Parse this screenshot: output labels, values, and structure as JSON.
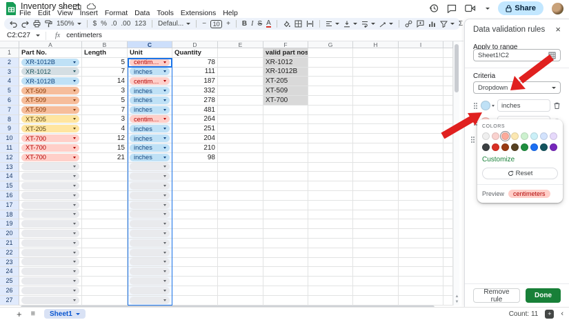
{
  "titlebar": {
    "title": "Inventory sheet",
    "menus": [
      "File",
      "Edit",
      "View",
      "Insert",
      "Format",
      "Data",
      "Tools",
      "Extensions",
      "Help"
    ],
    "share_label": "Share"
  },
  "toolbar": {
    "zoom": "150%",
    "currency": "$",
    "percent": "%",
    "dec_dec": ".0",
    "dec_inc": ".00",
    "fmt123": "123",
    "font": "Defaul...",
    "font_size": "10",
    "bold": "B",
    "italic": "I",
    "strike": "S",
    "text_color": "A",
    "sum": "Σ"
  },
  "formula_bar": {
    "name_box": "C2:C27",
    "fx": "fx",
    "value": "centimeters"
  },
  "grid": {
    "col_headers": [
      "A",
      "B",
      "C",
      "D",
      "E",
      "F",
      "G",
      "H",
      "I"
    ],
    "selected_col": "C",
    "header_row": {
      "A": "Part No.",
      "B": "Length",
      "C": "Unit",
      "D": "Quantity",
      "F": "valid part nos."
    },
    "rows": [
      {
        "part": "XR-1012B",
        "part_c": "blue",
        "len": "5",
        "unit": "centimeters",
        "unit_c": "red",
        "qty": "78",
        "valid": "XR-1012"
      },
      {
        "part": "XR-1012",
        "part_c": "teal",
        "len": "7",
        "unit": "inches",
        "unit_c": "blue",
        "qty": "111",
        "valid": "XR-1012B"
      },
      {
        "part": "XR-1012B",
        "part_c": "blue",
        "len": "14",
        "unit": "centimeters",
        "unit_c": "red",
        "qty": "187",
        "valid": "XT-205"
      },
      {
        "part": "XT-509",
        "part_c": "orange",
        "len": "3",
        "unit": "inches",
        "unit_c": "blue",
        "qty": "332",
        "valid": "XT-509"
      },
      {
        "part": "XT-509",
        "part_c": "orange",
        "len": "5",
        "unit": "inches",
        "unit_c": "blue",
        "qty": "278",
        "valid": "XT-700"
      },
      {
        "part": "XT-509",
        "part_c": "orange",
        "len": "7",
        "unit": "inches",
        "unit_c": "blue",
        "qty": "481",
        "valid": ""
      },
      {
        "part": "XT-205",
        "part_c": "yellow",
        "len": "3",
        "unit": "centimeters",
        "unit_c": "red",
        "qty": "264",
        "valid": ""
      },
      {
        "part": "XT-205",
        "part_c": "yellow",
        "len": "4",
        "unit": "inches",
        "unit_c": "blue",
        "qty": "251",
        "valid": ""
      },
      {
        "part": "XT-700",
        "part_c": "red",
        "len": "12",
        "unit": "inches",
        "unit_c": "blue",
        "qty": "204",
        "valid": ""
      },
      {
        "part": "XT-700",
        "part_c": "red",
        "len": "15",
        "unit": "inches",
        "unit_c": "blue",
        "qty": "210",
        "valid": ""
      },
      {
        "part": "XT-700",
        "part_c": "red",
        "len": "21",
        "unit": "inches",
        "unit_c": "blue",
        "qty": "98",
        "valid": ""
      }
    ],
    "total_rows": 27,
    "chip_colors": {
      "blue": {
        "bg": "#bfe1f6",
        "fg": "#11457e"
      },
      "teal": {
        "bg": "#d4dee3",
        "fg": "#21575e"
      },
      "orange": {
        "bg": "#f6bd9b",
        "fg": "#8a3c09"
      },
      "yellow": {
        "bg": "#ffe5a0",
        "fg": "#5c4612"
      },
      "red": {
        "bg": "#ffcfc9",
        "fg": "#b10202"
      },
      "empty": {
        "bg": "#e9eaed",
        "fg": "#5f6368"
      }
    },
    "valid_col_bg": "#d9d9d9"
  },
  "panel": {
    "title": "Data validation rules",
    "close": "×",
    "apply_to_range_label": "Apply to range",
    "range_value": "Sheet1!C2",
    "criteria_label": "Criteria",
    "criteria_value": "Dropdown",
    "options": [
      {
        "value": "inches",
        "swatch": "#bfe1f6"
      },
      {
        "value": "centimeters",
        "swatch": "#ffcfc9"
      }
    ],
    "color_picker": {
      "colors_label": "COLORS",
      "row1": [
        "#efefef",
        "#fad2cf",
        "#fcab9b",
        "#fce8b2",
        "#cdf1cf",
        "#cbf0f8",
        "#d3e3fd",
        "#e6d9fb"
      ],
      "row2": [
        "#3c4043",
        "#d93025",
        "#9a3b13",
        "#574122",
        "#1e8e3e",
        "#1b6ef3",
        "#14545e",
        "#7627bb"
      ],
      "selected_color": "#fcab9b",
      "customize_label": "Customize",
      "reset_label": "Reset",
      "preview_label": "Preview",
      "preview_value": "centimeters",
      "preview_bg": "#ffcfc9",
      "preview_fg": "#b10202"
    },
    "remove_rule_label": "Remove rule",
    "done_label": "Done"
  },
  "statusbar": {
    "sheet_tab": "Sheet1",
    "count": "Count: 11"
  },
  "colors": {
    "accent_blue": "#1a73e8",
    "done_green": "#188038",
    "annotation_red": "#e0201f"
  }
}
